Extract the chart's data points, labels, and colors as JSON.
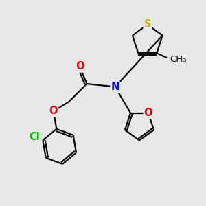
{
  "background_color": "#e8e8e8",
  "atom_colors": {
    "S": "#b8b800",
    "N": "#0000ff",
    "O": "#ff0000",
    "Cl": "#00bb00",
    "C": "#000000"
  },
  "bond_color": "#000000",
  "bond_width": 1.6,
  "figsize": [
    3.0,
    3.0
  ],
  "dpi": 100,
  "xlim": [
    0,
    10
  ],
  "ylim": [
    0,
    10
  ],
  "font_size_atom": 10.5,
  "font_size_methyl": 9.5
}
